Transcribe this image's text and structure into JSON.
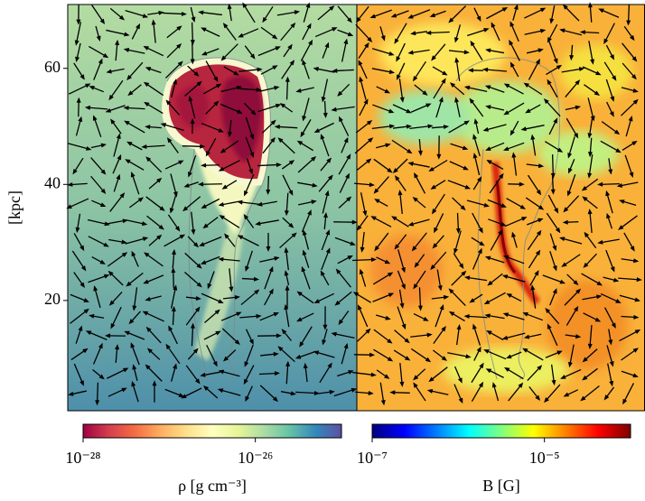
{
  "chart_data": {
    "type": "image",
    "ylabel": "[kpc]",
    "ylim": [
      1,
      71
    ],
    "yticks": [
      20,
      40,
      60
    ],
    "panels": [
      {
        "colorbar": {
          "label": "ρ [g cm⁻³]",
          "scale": "log",
          "lim": [
            1e-28,
            1e-25
          ],
          "ticks": [
            {
              "value": 1e-28,
              "label": "10⁻²⁸"
            },
            {
              "value": 1e-26,
              "label": "10⁻²⁶"
            }
          ],
          "colors": [
            "#9e0142",
            "#d53e4f",
            "#f46d43",
            "#fdae61",
            "#fee08b",
            "#ffffbf",
            "#e6f598",
            "#abdda4",
            "#66c2a5",
            "#3288bd",
            "#5e4fa2"
          ]
        }
      },
      {
        "colorbar": {
          "label": "B [G]",
          "scale": "log",
          "lim": [
            1e-07,
            0.0001
          ],
          "ticks": [
            {
              "value": 1e-07,
              "label": "10⁻⁷"
            },
            {
              "value": 1e-05,
              "label": "10⁻⁵"
            }
          ],
          "colors": [
            "#00007f",
            "#0000ff",
            "#007fff",
            "#00ffff",
            "#7fff7f",
            "#ffff00",
            "#ff7f00",
            "#ff0000",
            "#7f0000"
          ]
        }
      }
    ]
  }
}
